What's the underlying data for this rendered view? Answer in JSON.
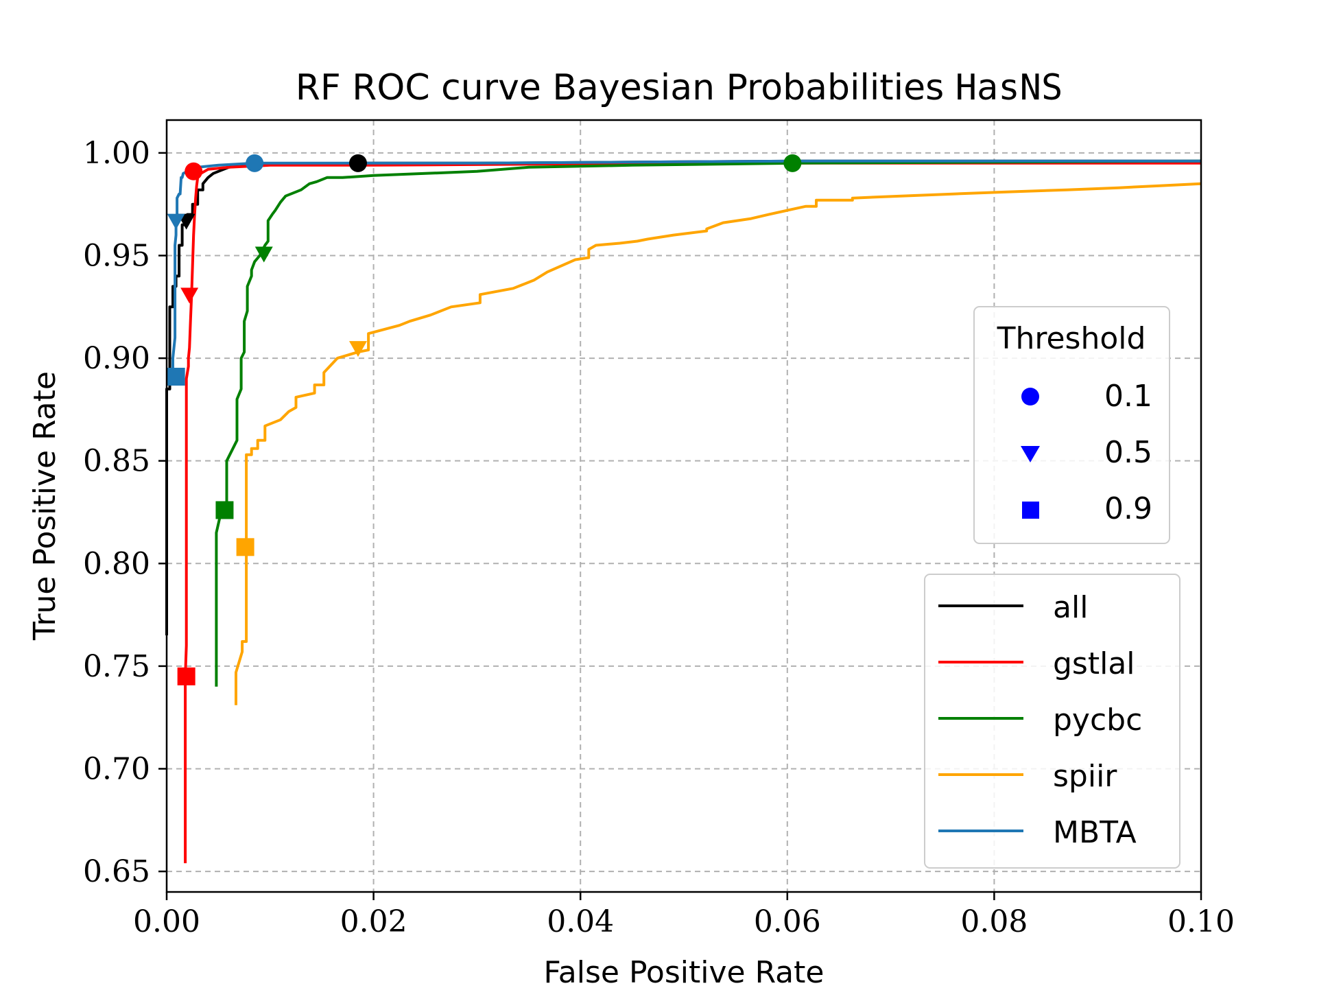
{
  "chart_data": {
    "type": "line",
    "title": "RF ROC curve Bayesian Probabilities",
    "title_code": "HasNS",
    "xlabel": "False Positive Rate",
    "ylabel": "True Positive Rate",
    "xlim": [
      0.0,
      0.1
    ],
    "ylim": [
      0.64,
      1.016
    ],
    "xticks": [
      0.0,
      0.02,
      0.04,
      0.06,
      0.08,
      0.1
    ],
    "xtick_labels": [
      "0.00",
      "0.02",
      "0.04",
      "0.06",
      "0.08",
      "0.10"
    ],
    "yticks": [
      0.65,
      0.7,
      0.75,
      0.8,
      0.85,
      0.9,
      0.95,
      1.0
    ],
    "ytick_labels": [
      "0.65",
      "0.70",
      "0.75",
      "0.80",
      "0.85",
      "0.90",
      "0.95",
      "1.00"
    ],
    "grid": true,
    "series": [
      {
        "name": "all",
        "color": "#000000",
        "x": [
          0.0,
          0.0,
          0.0003,
          0.0003,
          0.0006,
          0.0006,
          0.0009,
          0.0009,
          0.0012,
          0.0012,
          0.0015,
          0.0015,
          0.002,
          0.002,
          0.0025,
          0.0025,
          0.003,
          0.003,
          0.0035,
          0.0035,
          0.004,
          0.0045,
          0.005,
          0.006,
          0.008,
          0.0185,
          0.03,
          0.06,
          0.1
        ],
        "y": [
          0.765,
          0.885,
          0.885,
          0.925,
          0.925,
          0.935,
          0.935,
          0.94,
          0.94,
          0.955,
          0.955,
          0.965,
          0.965,
          0.97,
          0.97,
          0.975,
          0.975,
          0.982,
          0.982,
          0.985,
          0.988,
          0.99,
          0.991,
          0.993,
          0.994,
          0.995,
          0.995,
          0.996,
          0.996
        ],
        "markers": {
          "0.1": [
            0.0185,
            0.995
          ],
          "0.5": [
            0.0019,
            0.967
          ],
          "0.9": [
            0.0009,
            0.891
          ]
        }
      },
      {
        "name": "gstlal",
        "color": "#ff0000",
        "x": [
          0.0018,
          0.0018,
          0.0019,
          0.0019,
          0.002,
          0.0021,
          0.0021,
          0.0022,
          0.0023,
          0.0024,
          0.0025,
          0.0026,
          0.0027,
          0.0028,
          0.0029,
          0.003,
          0.0033,
          0.004,
          0.006,
          0.01,
          0.02,
          0.05,
          0.1
        ],
        "y": [
          0.654,
          0.745,
          0.76,
          0.89,
          0.893,
          0.896,
          0.9,
          0.905,
          0.918,
          0.93,
          0.945,
          0.96,
          0.97,
          0.978,
          0.984,
          0.988,
          0.99,
          0.992,
          0.993,
          0.994,
          0.994,
          0.995,
          0.995
        ],
        "markers": {
          "0.1": [
            0.0026,
            0.991
          ],
          "0.5": [
            0.0022,
            0.931
          ],
          "0.9": [
            0.0019,
            0.745
          ]
        }
      },
      {
        "name": "pycbc",
        "color": "#008000",
        "x": [
          0.0048,
          0.0048,
          0.0053,
          0.0058,
          0.0058,
          0.0068,
          0.0068,
          0.0072,
          0.0072,
          0.0075,
          0.0075,
          0.0078,
          0.0078,
          0.0082,
          0.0082,
          0.0085,
          0.009,
          0.0095,
          0.0098,
          0.0098,
          0.0102,
          0.0105,
          0.011,
          0.0115,
          0.012,
          0.013,
          0.0138,
          0.0145,
          0.0155,
          0.017,
          0.02,
          0.025,
          0.03,
          0.035,
          0.045,
          0.0605,
          0.1
        ],
        "y": [
          0.74,
          0.815,
          0.826,
          0.83,
          0.85,
          0.86,
          0.88,
          0.885,
          0.9,
          0.903,
          0.918,
          0.923,
          0.935,
          0.94,
          0.943,
          0.947,
          0.95,
          0.955,
          0.957,
          0.967,
          0.97,
          0.972,
          0.976,
          0.979,
          0.98,
          0.982,
          0.985,
          0.986,
          0.988,
          0.988,
          0.989,
          0.99,
          0.991,
          0.993,
          0.994,
          0.995,
          0.996
        ],
        "markers": {
          "0.1": [
            0.0605,
            0.995
          ],
          "0.5": [
            0.0094,
            0.951
          ],
          "0.9": [
            0.0056,
            0.826
          ]
        }
      },
      {
        "name": "spiir",
        "color": "#ffa500",
        "x": [
          0.0067,
          0.0067,
          0.0073,
          0.0073,
          0.0077,
          0.0077,
          0.0082,
          0.0082,
          0.0088,
          0.0088,
          0.0095,
          0.0095,
          0.011,
          0.0118,
          0.0125,
          0.0125,
          0.0143,
          0.0143,
          0.0152,
          0.0152,
          0.0165,
          0.0185,
          0.0195,
          0.0195,
          0.0225,
          0.0235,
          0.0255,
          0.0275,
          0.0303,
          0.0303,
          0.0335,
          0.0355,
          0.0368,
          0.0395,
          0.0408,
          0.0408,
          0.0415,
          0.0438,
          0.0455,
          0.0465,
          0.049,
          0.0522,
          0.0522,
          0.0538,
          0.0565,
          0.0582,
          0.06,
          0.0618,
          0.0628,
          0.0628,
          0.0663,
          0.0663,
          0.071,
          0.076,
          0.0812,
          0.087,
          0.092,
          0.096,
          0.1
        ],
        "y": [
          0.731,
          0.747,
          0.757,
          0.762,
          0.762,
          0.853,
          0.853,
          0.856,
          0.856,
          0.86,
          0.86,
          0.867,
          0.87,
          0.874,
          0.876,
          0.881,
          0.883,
          0.887,
          0.887,
          0.893,
          0.9,
          0.903,
          0.904,
          0.912,
          0.916,
          0.918,
          0.921,
          0.925,
          0.927,
          0.931,
          0.934,
          0.938,
          0.942,
          0.948,
          0.949,
          0.953,
          0.955,
          0.956,
          0.957,
          0.958,
          0.96,
          0.962,
          0.963,
          0.966,
          0.968,
          0.97,
          0.972,
          0.974,
          0.974,
          0.977,
          0.977,
          0.978,
          0.979,
          0.98,
          0.981,
          0.982,
          0.983,
          0.984,
          0.985
        ],
        "markers": {
          "0.1": null,
          "0.5": [
            0.0185,
            0.905
          ],
          "0.9": [
            0.0076,
            0.808
          ]
        }
      },
      {
        "name": "MBTA",
        "color": "#1f77b4",
        "x": [
          0.0006,
          0.0006,
          0.0008,
          0.0008,
          0.0009,
          0.0009,
          0.001,
          0.001,
          0.0012,
          0.0013,
          0.0014,
          0.0015,
          0.0016,
          0.002,
          0.003,
          0.005,
          0.0085,
          0.015,
          0.03,
          0.06,
          0.1
        ],
        "y": [
          0.887,
          0.9,
          0.91,
          0.955,
          0.96,
          0.968,
          0.97,
          0.978,
          0.98,
          0.98,
          0.988,
          0.988,
          0.99,
          0.991,
          0.993,
          0.994,
          0.995,
          0.995,
          0.995,
          0.996,
          0.996
        ],
        "markers": {
          "0.1": [
            0.0085,
            0.995
          ],
          "0.5": [
            0.0009,
            0.967
          ],
          "0.9": [
            0.0009,
            0.891
          ]
        }
      }
    ],
    "threshold_legend": {
      "title": "Threshold",
      "marker_color": "#0000ff",
      "entries": [
        {
          "label": "0.1",
          "marker": "circle"
        },
        {
          "label": "0.5",
          "marker": "triangle-down"
        },
        {
          "label": "0.9",
          "marker": "square"
        }
      ]
    },
    "series_legend_placement": "lower-right",
    "threshold_legend_placement": "center-right"
  }
}
